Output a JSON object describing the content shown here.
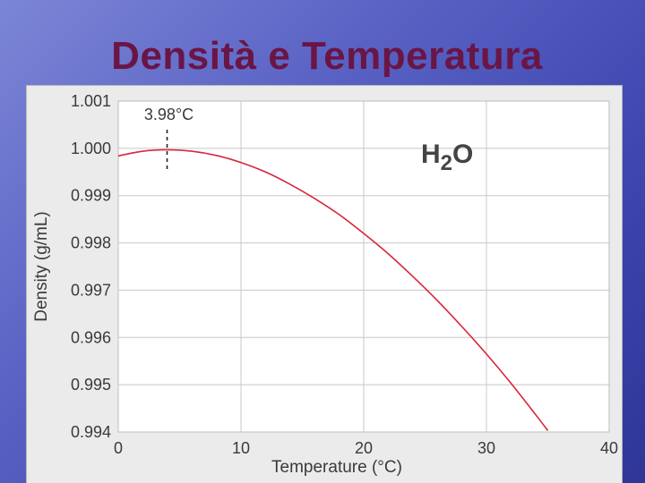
{
  "slide": {
    "title": "Densità e Temperatura",
    "accent_color": "#6a1545"
  },
  "chart_data": {
    "type": "line",
    "title": "",
    "xlabel": "Temperature (°C)",
    "ylabel": "Density (g/mL)",
    "xlim": [
      0,
      40
    ],
    "ylim": [
      0.994,
      1.001
    ],
    "xticks": [
      "0",
      "10",
      "20",
      "30",
      "40"
    ],
    "yticks": [
      "0.994",
      "0.995",
      "0.996",
      "0.997",
      "0.998",
      "0.999",
      "1.000",
      "1.001"
    ],
    "grid": true,
    "series": [
      {
        "color": "#d7263d",
        "x": [
          0,
          2,
          3.98,
          6,
          8,
          10,
          12,
          14,
          16,
          18,
          20,
          22,
          24,
          26,
          28,
          30,
          32,
          34,
          35
        ],
        "y": [
          0.99984,
          0.99994,
          0.99997,
          0.99994,
          0.99985,
          0.9997,
          0.9995,
          0.99924,
          0.99894,
          0.9986,
          0.9982,
          0.99777,
          0.99729,
          0.99678,
          0.99623,
          0.99565,
          0.99503,
          0.99437,
          0.99403
        ]
      }
    ],
    "annotations": [
      {
        "text": "3.98°C",
        "x": 3.98,
        "style": "dashed-vertical-marker"
      },
      {
        "text": "H",
        "subscript": "2",
        "suffix": "O"
      }
    ]
  }
}
